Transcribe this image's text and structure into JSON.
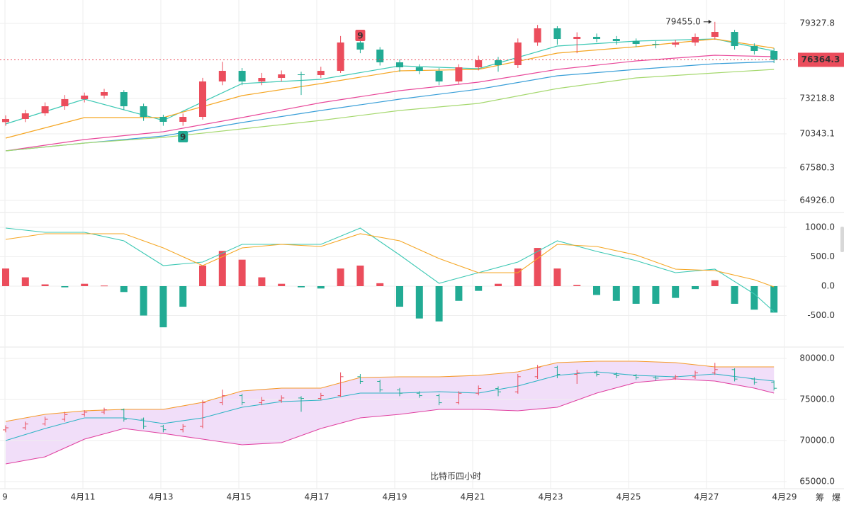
{
  "title": "比特币四小时",
  "toolbar": [
    "筹",
    "爆"
  ],
  "x_axis": {
    "labels": [
      "9",
      "4月11",
      "4月13",
      "4月15",
      "4月17",
      "4月19",
      "4月21",
      "4月23",
      "4月25",
      "4月27",
      "4月29"
    ]
  },
  "chart_data": [
    {
      "type": "candlestick",
      "colors": {
        "up": "#eb4d5c",
        "down": "#22ab94"
      },
      "ohlc": {
        "open": [
          71300,
          71552,
          72012,
          72588,
          73164,
          73453,
          73740,
          72588,
          71724,
          71321,
          71724,
          74604,
          75468,
          74604,
          74892,
          75180,
          75123,
          75468,
          77773,
          77197,
          76160,
          75756,
          75468,
          74604,
          75756,
          76332,
          75929,
          77773,
          78924,
          78060,
          78233,
          78060,
          77887,
          77657,
          77600,
          77773,
          78233,
          78636,
          77484,
          77081
        ],
        "high": [
          71850,
          72300,
          72900,
          73500,
          73700,
          74000,
          73900,
          72800,
          71900,
          72000,
          74900,
          76200,
          75700,
          75300,
          75500,
          75400,
          75800,
          78300,
          78100,
          77400,
          76400,
          76000,
          75700,
          76000,
          76700,
          76600,
          78100,
          79200,
          79100,
          78600,
          78500,
          78300,
          78100,
          77900,
          78000,
          78500,
          79455,
          78800,
          77700,
          77300
        ],
        "low": [
          71000,
          71300,
          71800,
          72300,
          72900,
          73200,
          72300,
          71400,
          71000,
          71000,
          71500,
          74300,
          74300,
          74300,
          74600,
          73500,
          74900,
          75300,
          76900,
          75900,
          75400,
          75200,
          74300,
          74400,
          75500,
          75400,
          75700,
          77500,
          77600,
          76900,
          77800,
          77600,
          77400,
          77300,
          77400,
          77500,
          78000,
          77200,
          76800,
          76100
        ],
        "close": [
          71552,
          72012,
          72588,
          73164,
          73453,
          73740,
          72588,
          71724,
          71321,
          71724,
          74604,
          75468,
          74604,
          74892,
          75180,
          75123,
          75468,
          77773,
          77197,
          76160,
          75756,
          75468,
          74604,
          75756,
          76332,
          75929,
          77773,
          78924,
          78060,
          78233,
          78060,
          77887,
          77657,
          77600,
          77773,
          78233,
          78636,
          77484,
          77081,
          76364
        ]
      },
      "lines": {
        "x": [
          0,
          4,
          8,
          12,
          16,
          20,
          24,
          28,
          32,
          36,
          39
        ],
        "series": [
          {
            "color": "#3cc8b4",
            "values": [
              71149,
              73165,
              71437,
              74432,
              74778,
              75872,
              75642,
              77485,
              77888,
              78061,
              77082
            ]
          },
          {
            "color": "#f5a623",
            "values": [
              69997,
              71667,
              71667,
              73453,
              74432,
              75469,
              75584,
              76909,
              77427,
              78061,
              77312
            ]
          },
          {
            "color": "#e8489a",
            "values": [
              68960,
              69882,
              70515,
              71667,
              72877,
              73856,
              74547,
              75584,
              76275,
              76736,
              76621
            ]
          },
          {
            "color": "#3a9fd8",
            "values": [
              68960,
              69594,
              70170,
              71264,
              72243,
              73165,
              73971,
              75066,
              75584,
              76045,
              76218
            ]
          },
          {
            "color": "#a5d86e",
            "values": [
              68960,
              69594,
              70054,
              70746,
              71437,
              72243,
              72819,
              74029,
              74893,
              75296,
              75584
            ]
          }
        ]
      },
      "ylim": [
        63948,
        81229
      ],
      "yticks": [
        79327.8,
        73218.8,
        70343.1,
        67580.3,
        {
          "value": 64926,
          "label": "64926.0"
        }
      ],
      "last_price": 76364.3,
      "annotations": [
        {
          "text": "79455.0",
          "x": 36,
          "y": 79455,
          "color": "#222222"
        },
        {
          "text": "9",
          "x": 18,
          "y": 78348,
          "color": "#eb4d5c"
        },
        {
          "text": "9",
          "x": 9,
          "y": 70112,
          "color": "#22ab94"
        }
      ],
      "grid": true
    },
    {
      "type": "macd",
      "colors": {
        "up": "#eb4d5c",
        "down": "#22ab94"
      },
      "values": [
        300,
        150,
        30,
        -20,
        40,
        10,
        -100,
        -500,
        -700,
        -350,
        350,
        600,
        450,
        150,
        40,
        -20,
        -40,
        300,
        350,
        50,
        -350,
        -550,
        -600,
        -250,
        -80,
        40,
        300,
        650,
        300,
        20,
        -150,
        -250,
        -300,
        -300,
        -200,
        -50,
        100,
        -300,
        -400,
        -450
      ],
      "lines": {
        "x": [
          0,
          2,
          4,
          6,
          8,
          10,
          12,
          14,
          16,
          18,
          20,
          22,
          24,
          26,
          28,
          30,
          32,
          34,
          36,
          38,
          39
        ],
        "series": [
          {
            "color": "#3cc8b4",
            "values": [
              988,
              916,
              916,
              771,
              349,
              410,
              711,
              711,
              711,
              988,
              530,
              48,
              229,
              410,
              771,
              590,
              434,
              229,
              289,
              -133,
              -434
            ]
          },
          {
            "color": "#f5a623",
            "values": [
              795,
              892,
              892,
              892,
              651,
              349,
              651,
              711,
              675,
              892,
              771,
              470,
              229,
              229,
              711,
              675,
              530,
              289,
              265,
              108,
              -12
            ]
          }
        ]
      },
      "ylim": [
        -1036,
        1253
      ],
      "yticks": [
        {
          "value": 1000,
          "label": "1000.0"
        },
        {
          "value": 500,
          "label": "500.0"
        },
        {
          "value": 0,
          "label": "0.0"
        },
        {
          "value": -500,
          "label": "-500.0"
        }
      ],
      "grid": true
    },
    {
      "type": "bollinger",
      "colors": {
        "up": "#eb4d5c",
        "down": "#22ab94",
        "band": "#f1def9"
      },
      "lines": {
        "x": [
          0,
          2,
          4,
          6,
          8,
          10,
          12,
          14,
          16,
          18,
          20,
          22,
          24,
          26,
          28,
          30,
          32,
          34,
          36,
          38,
          39
        ],
        "series": [
          {
            "color": "#f59a2a",
            "values": [
              72328,
              73190,
              73621,
              73793,
              73793,
              74655,
              76034,
              76379,
              76379,
              77672,
              77758,
              77758,
              77931,
              78362,
              79482,
              79655,
              79655,
              79482,
              78965,
              78965,
              78965
            ]
          },
          {
            "color": "#2bb3c4",
            "values": [
              70000,
              71466,
              72759,
              72759,
              72069,
              72759,
              74052,
              74741,
              74914,
              75776,
              75776,
              75948,
              75776,
              76638,
              77931,
              78362,
              77931,
              77758,
              78103,
              77500,
              77241
            ]
          },
          {
            "color": "#e040a0",
            "values": [
              67156,
              68018,
              70173,
              71466,
              70862,
              70173,
              69483,
              69742,
              71466,
              72759,
              73190,
              73793,
              73793,
              73621,
              74052,
              75776,
              77069,
              77500,
              77241,
              76379,
              75776
            ]
          }
        ]
      },
      "ylim": [
        64138,
        81379
      ],
      "yticks": [
        {
          "value": 80000,
          "label": "80000.0"
        },
        {
          "value": 75000,
          "label": "75000.0"
        },
        {
          "value": 70000,
          "label": "70000.0"
        },
        {
          "value": 65000,
          "label": "65000.0"
        }
      ],
      "grid": true
    }
  ]
}
